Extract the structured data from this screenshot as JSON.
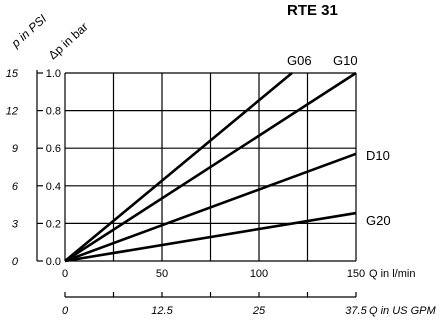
{
  "chart_data": {
    "type": "line",
    "title": "RTE 31",
    "xlabel": "Q in l/min",
    "ylabel_bar": "Δp in bar",
    "ylabel_psi": "p in PSI",
    "xlim": [
      0,
      150
    ],
    "ylim": [
      0,
      1.0
    ],
    "grid": true,
    "x_ticks": [
      "0",
      "50",
      "100",
      "150"
    ],
    "y_ticks": [
      "0.0",
      "0.2",
      "0.4",
      "0.6",
      "0.8",
      "1.0"
    ],
    "psi_ticks": [
      "0",
      "3",
      "6",
      "9",
      "12",
      "15"
    ],
    "gpm_ticks": [
      "0",
      "12.5",
      "25",
      "37.5"
    ],
    "gpm_label": "Q in US GPM",
    "series": [
      {
        "name": "G06",
        "x": [
          0,
          117
        ],
        "y": [
          0,
          1.0
        ]
      },
      {
        "name": "G10",
        "x": [
          0,
          150
        ],
        "y": [
          0,
          1.0
        ]
      },
      {
        "name": "D10",
        "x": [
          0,
          150
        ],
        "y": [
          0,
          0.57
        ]
      },
      {
        "name": "G20",
        "x": [
          0,
          150
        ],
        "y": [
          0,
          0.255
        ]
      }
    ]
  }
}
